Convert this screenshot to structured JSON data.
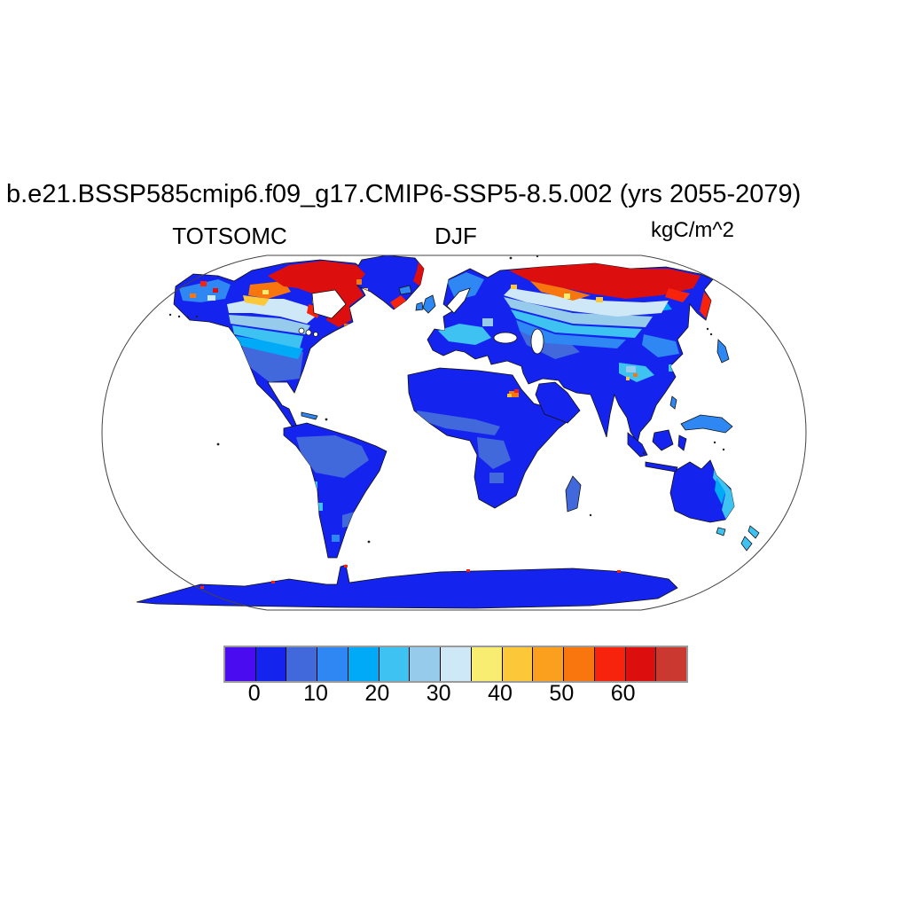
{
  "title": "b.e21.BSSP585cmip6.f09_g17.CMIP6-SSP5-8.5.002 (yrs 2055-2079)",
  "labels": {
    "variable": "TOTSOMC",
    "season": "DJF",
    "units": "kgC/m^2"
  },
  "palette": {
    "violet": "#4A0BF0",
    "blue": "#1523EE",
    "royal": "#4169DC",
    "dodger": "#2E87F2",
    "deepsky": "#00AAF6",
    "sky": "#3EC2F2",
    "light": "#96CBEB",
    "pale": "#CEE8F8",
    "yellow": "#F8ED70",
    "gold": "#FDC73A",
    "orange": "#FBA01E",
    "dkorange": "#F9750E",
    "red": "#F8230C",
    "dkred": "#DD0E0E",
    "brick": "#CB3830",
    "outline": "#444444",
    "border": "#9A9A9A"
  },
  "colorbar": {
    "colors": [
      "#4A0BF0",
      "#1523EE",
      "#4169DC",
      "#2E87F2",
      "#00AAF6",
      "#3EC2F2",
      "#96CBEB",
      "#CEE8F8",
      "#F8ED70",
      "#FDC73A",
      "#FBA01E",
      "#F9750E",
      "#F8230C",
      "#DD0E0E",
      "#CB3830"
    ],
    "ticks": [
      "0",
      "10",
      "20",
      "30",
      "40",
      "50",
      "60"
    ]
  },
  "chart_data": {
    "type": "heatmap",
    "title": "b.e21.BSSP585cmip6.f09_g17.CMIP6-SSP5-8.5.002 (yrs 2055-2079)",
    "variable": "TOTSOMC",
    "season": "DJF",
    "units": "kgC/m^2",
    "projection": "Robinson-style global map, land-only shading, oceans white",
    "levels": [
      0,
      5,
      10,
      15,
      20,
      25,
      30,
      35,
      40,
      45,
      50,
      55,
      60,
      65
    ],
    "palette": [
      "#4A0BF0",
      "#1523EE",
      "#4169DC",
      "#2E87F2",
      "#00AAF6",
      "#3EC2F2",
      "#96CBEB",
      "#CEE8F8",
      "#F8ED70",
      "#FDC73A",
      "#FBA01E",
      "#F9750E",
      "#F8230C",
      "#DD0E0E",
      "#CB3830"
    ],
    "tick_labels": [
      0,
      10,
      20,
      30,
      40,
      50,
      60
    ],
    "legend_position": "bottom",
    "regional_values_kgC_per_m2": {
      "antarctica": "0-5",
      "south_america": "0-5 with 5-10 over Amazon basin",
      "africa": "0-5, 5-10 patches in central Africa, small 40-65 hotspot near South Sudan/Ethiopia",
      "australia": "0-5, 15-25 along east coast",
      "india_middle_east": "0-5",
      "europe": "5-20",
      "central_asia": "5-15",
      "tibet_west_china": "15-35 with small 45-60 spots",
      "usa": "5-10",
      "central_canada_transition_band": "20-40",
      "canadian_arctic_and_hudson_bay_rim": "60 to >65",
      "alaska": "10-25 with >60 spots",
      "mid_siberia_band": "20-40",
      "northern_siberia": "60 to >65 with 35-55 fringe",
      "greenland": "0-5 interior, >60 coastal fringe"
    }
  }
}
